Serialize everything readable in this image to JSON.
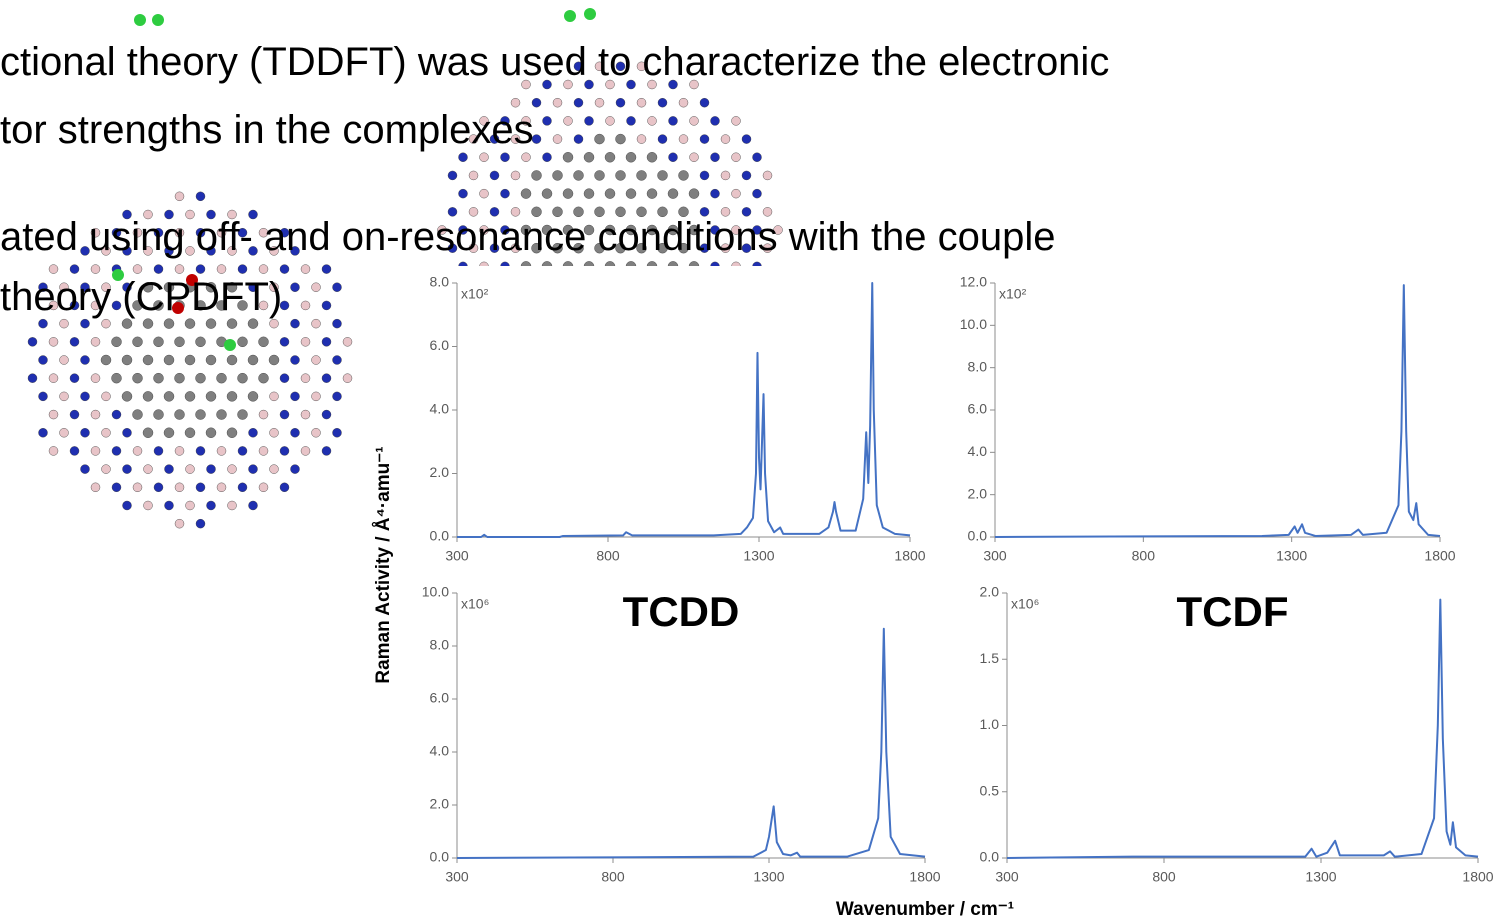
{
  "slide": {
    "text_lines": [
      "ctional theory (TDDFT) was used to characterize the electronic",
      "tor strengths in the complexes",
      "ated using off- and on-resonance conditions with the couple",
      "theory (CPDFT)"
    ]
  },
  "figure": {
    "ylabel": "Raman Activity / Å⁴·amu⁻¹",
    "xlabel": "Wavenumber / cm⁻¹"
  },
  "chart_data": [
    {
      "type": "line",
      "annotation": "x10²",
      "color": "#4472c4",
      "xlim": [
        300,
        1800
      ],
      "xticks": [
        300,
        800,
        1300,
        1800
      ],
      "ylim": [
        0,
        8
      ],
      "yticks": [
        {
          "value": 0,
          "label": "0.0"
        },
        {
          "value": 2,
          "label": "2.0"
        },
        {
          "value": 4,
          "label": "4.0"
        },
        {
          "value": 6,
          "label": "6.0"
        },
        {
          "value": 8,
          "label": "8.0"
        }
      ],
      "x": [
        300,
        380,
        390,
        400,
        640,
        650,
        850,
        860,
        880,
        1150,
        1240,
        1260,
        1280,
        1290,
        1295,
        1300,
        1305,
        1310,
        1315,
        1320,
        1330,
        1350,
        1370,
        1380,
        1500,
        1530,
        1545,
        1550,
        1555,
        1570,
        1620,
        1645,
        1655,
        1662,
        1668,
        1675,
        1680,
        1690,
        1710,
        1750,
        1800
      ],
      "values": [
        0,
        0,
        0.07,
        0,
        0,
        0.03,
        0.05,
        0.15,
        0.05,
        0.05,
        0.1,
        0.3,
        0.6,
        2,
        5.8,
        2.5,
        1.5,
        3,
        4.5,
        2,
        0.5,
        0.15,
        0.3,
        0.1,
        0.1,
        0.3,
        0.8,
        1.1,
        0.8,
        0.2,
        0.2,
        1.2,
        3.3,
        1.7,
        3.5,
        8,
        4,
        1,
        0.3,
        0.1,
        0.05
      ]
    },
    {
      "type": "line",
      "annotation": "x10²",
      "color": "#4472c4",
      "xlim": [
        300,
        1800
      ],
      "xticks": [
        300,
        800,
        1300,
        1800
      ],
      "ylim": [
        0,
        12
      ],
      "yticks": [
        {
          "value": 0,
          "label": "0.0"
        },
        {
          "value": 2,
          "label": "2.0"
        },
        {
          "value": 4,
          "label": "4.0"
        },
        {
          "value": 6,
          "label": "6.0"
        },
        {
          "value": 8,
          "label": "8.0"
        },
        {
          "value": 10,
          "label": "10.0"
        },
        {
          "value": 12,
          "label": "12.0"
        }
      ],
      "x": [
        300,
        1200,
        1290,
        1310,
        1320,
        1335,
        1345,
        1380,
        1500,
        1525,
        1540,
        1620,
        1660,
        1670,
        1678,
        1686,
        1695,
        1710,
        1720,
        1728,
        1760,
        1800
      ],
      "values": [
        0,
        0.05,
        0.1,
        0.5,
        0.2,
        0.6,
        0.2,
        0.05,
        0.1,
        0.35,
        0.1,
        0.2,
        1.5,
        5,
        11.9,
        5,
        1.2,
        0.8,
        1.6,
        0.6,
        0.1,
        0.05
      ]
    },
    {
      "type": "line",
      "title": "TCDD",
      "annotation": "x10⁶",
      "color": "#4472c4",
      "xlim": [
        300,
        1800
      ],
      "xticks": [
        300,
        800,
        1300,
        1800
      ],
      "ylim": [
        0,
        10
      ],
      "yticks": [
        {
          "value": 0,
          "label": "0.0"
        },
        {
          "value": 2,
          "label": "2.0"
        },
        {
          "value": 4,
          "label": "4.0"
        },
        {
          "value": 6,
          "label": "6.0"
        },
        {
          "value": 8,
          "label": "8.0"
        },
        {
          "value": 10,
          "label": "10.0"
        }
      ],
      "x": [
        300,
        1250,
        1290,
        1300,
        1315,
        1325,
        1345,
        1370,
        1390,
        1400,
        1550,
        1620,
        1650,
        1660,
        1668,
        1676,
        1690,
        1720,
        1800
      ],
      "values": [
        0,
        0.05,
        0.3,
        0.8,
        1.95,
        0.6,
        0.15,
        0.1,
        0.2,
        0.05,
        0.05,
        0.3,
        1.5,
        4,
        8.65,
        4,
        0.8,
        0.15,
        0.05
      ]
    },
    {
      "type": "line",
      "title": "TCDF",
      "annotation": "x10⁶",
      "color": "#4472c4",
      "xlim": [
        300,
        1800
      ],
      "xticks": [
        300,
        800,
        1300,
        1800
      ],
      "ylim": [
        0,
        2
      ],
      "yticks": [
        {
          "value": 0,
          "label": "0.0"
        },
        0.5,
        {
          "value": 1,
          "label": "1.0"
        },
        1.5,
        {
          "value": 2,
          "label": "2.0"
        }
      ],
      "x": [
        300,
        700,
        1100,
        1250,
        1270,
        1285,
        1320,
        1345,
        1360,
        1500,
        1520,
        1535,
        1620,
        1660,
        1672,
        1680,
        1688,
        1700,
        1712,
        1720,
        1730,
        1760,
        1800
      ],
      "values": [
        0,
        0.01,
        0.01,
        0.01,
        0.07,
        0.01,
        0.04,
        0.13,
        0.02,
        0.02,
        0.05,
        0.01,
        0.03,
        0.3,
        1,
        1.95,
        0.9,
        0.2,
        0.1,
        0.27,
        0.08,
        0.02,
        0.01
      ]
    }
  ]
}
